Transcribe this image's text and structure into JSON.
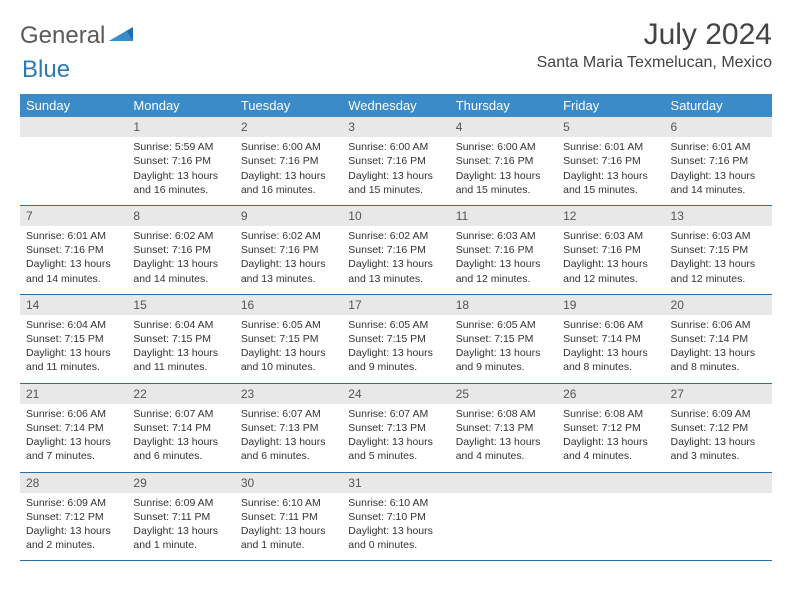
{
  "brand": {
    "name1": "General",
    "name2": "Blue"
  },
  "title": "July 2024",
  "location": "Santa Maria Texmelucan, Mexico",
  "colors": {
    "header_bg": "#3b8bc9",
    "daynum_bg": "#e8e8e8",
    "rule": "#2a6ea8",
    "text": "#333333",
    "brand_gray": "#5a5a5a",
    "brand_blue": "#2a7ab8"
  },
  "weekdays": [
    "Sunday",
    "Monday",
    "Tuesday",
    "Wednesday",
    "Thursday",
    "Friday",
    "Saturday"
  ],
  "weeks": [
    [
      null,
      {
        "n": "1",
        "sr": "5:59 AM",
        "ss": "7:16 PM",
        "dl": "13 hours and 16 minutes."
      },
      {
        "n": "2",
        "sr": "6:00 AM",
        "ss": "7:16 PM",
        "dl": "13 hours and 16 minutes."
      },
      {
        "n": "3",
        "sr": "6:00 AM",
        "ss": "7:16 PM",
        "dl": "13 hours and 15 minutes."
      },
      {
        "n": "4",
        "sr": "6:00 AM",
        "ss": "7:16 PM",
        "dl": "13 hours and 15 minutes."
      },
      {
        "n": "5",
        "sr": "6:01 AM",
        "ss": "7:16 PM",
        "dl": "13 hours and 15 minutes."
      },
      {
        "n": "6",
        "sr": "6:01 AM",
        "ss": "7:16 PM",
        "dl": "13 hours and 14 minutes."
      }
    ],
    [
      {
        "n": "7",
        "sr": "6:01 AM",
        "ss": "7:16 PM",
        "dl": "13 hours and 14 minutes."
      },
      {
        "n": "8",
        "sr": "6:02 AM",
        "ss": "7:16 PM",
        "dl": "13 hours and 14 minutes."
      },
      {
        "n": "9",
        "sr": "6:02 AM",
        "ss": "7:16 PM",
        "dl": "13 hours and 13 minutes."
      },
      {
        "n": "10",
        "sr": "6:02 AM",
        "ss": "7:16 PM",
        "dl": "13 hours and 13 minutes."
      },
      {
        "n": "11",
        "sr": "6:03 AM",
        "ss": "7:16 PM",
        "dl": "13 hours and 12 minutes."
      },
      {
        "n": "12",
        "sr": "6:03 AM",
        "ss": "7:16 PM",
        "dl": "13 hours and 12 minutes."
      },
      {
        "n": "13",
        "sr": "6:03 AM",
        "ss": "7:15 PM",
        "dl": "13 hours and 12 minutes."
      }
    ],
    [
      {
        "n": "14",
        "sr": "6:04 AM",
        "ss": "7:15 PM",
        "dl": "13 hours and 11 minutes."
      },
      {
        "n": "15",
        "sr": "6:04 AM",
        "ss": "7:15 PM",
        "dl": "13 hours and 11 minutes."
      },
      {
        "n": "16",
        "sr": "6:05 AM",
        "ss": "7:15 PM",
        "dl": "13 hours and 10 minutes."
      },
      {
        "n": "17",
        "sr": "6:05 AM",
        "ss": "7:15 PM",
        "dl": "13 hours and 9 minutes."
      },
      {
        "n": "18",
        "sr": "6:05 AM",
        "ss": "7:15 PM",
        "dl": "13 hours and 9 minutes."
      },
      {
        "n": "19",
        "sr": "6:06 AM",
        "ss": "7:14 PM",
        "dl": "13 hours and 8 minutes."
      },
      {
        "n": "20",
        "sr": "6:06 AM",
        "ss": "7:14 PM",
        "dl": "13 hours and 8 minutes."
      }
    ],
    [
      {
        "n": "21",
        "sr": "6:06 AM",
        "ss": "7:14 PM",
        "dl": "13 hours and 7 minutes."
      },
      {
        "n": "22",
        "sr": "6:07 AM",
        "ss": "7:14 PM",
        "dl": "13 hours and 6 minutes."
      },
      {
        "n": "23",
        "sr": "6:07 AM",
        "ss": "7:13 PM",
        "dl": "13 hours and 6 minutes."
      },
      {
        "n": "24",
        "sr": "6:07 AM",
        "ss": "7:13 PM",
        "dl": "13 hours and 5 minutes."
      },
      {
        "n": "25",
        "sr": "6:08 AM",
        "ss": "7:13 PM",
        "dl": "13 hours and 4 minutes."
      },
      {
        "n": "26",
        "sr": "6:08 AM",
        "ss": "7:12 PM",
        "dl": "13 hours and 4 minutes."
      },
      {
        "n": "27",
        "sr": "6:09 AM",
        "ss": "7:12 PM",
        "dl": "13 hours and 3 minutes."
      }
    ],
    [
      {
        "n": "28",
        "sr": "6:09 AM",
        "ss": "7:12 PM",
        "dl": "13 hours and 2 minutes."
      },
      {
        "n": "29",
        "sr": "6:09 AM",
        "ss": "7:11 PM",
        "dl": "13 hours and 1 minute."
      },
      {
        "n": "30",
        "sr": "6:10 AM",
        "ss": "7:11 PM",
        "dl": "13 hours and 1 minute."
      },
      {
        "n": "31",
        "sr": "6:10 AM",
        "ss": "7:10 PM",
        "dl": "13 hours and 0 minutes."
      },
      null,
      null,
      null
    ]
  ],
  "labels": {
    "sunrise": "Sunrise:",
    "sunset": "Sunset:",
    "daylight": "Daylight:"
  }
}
